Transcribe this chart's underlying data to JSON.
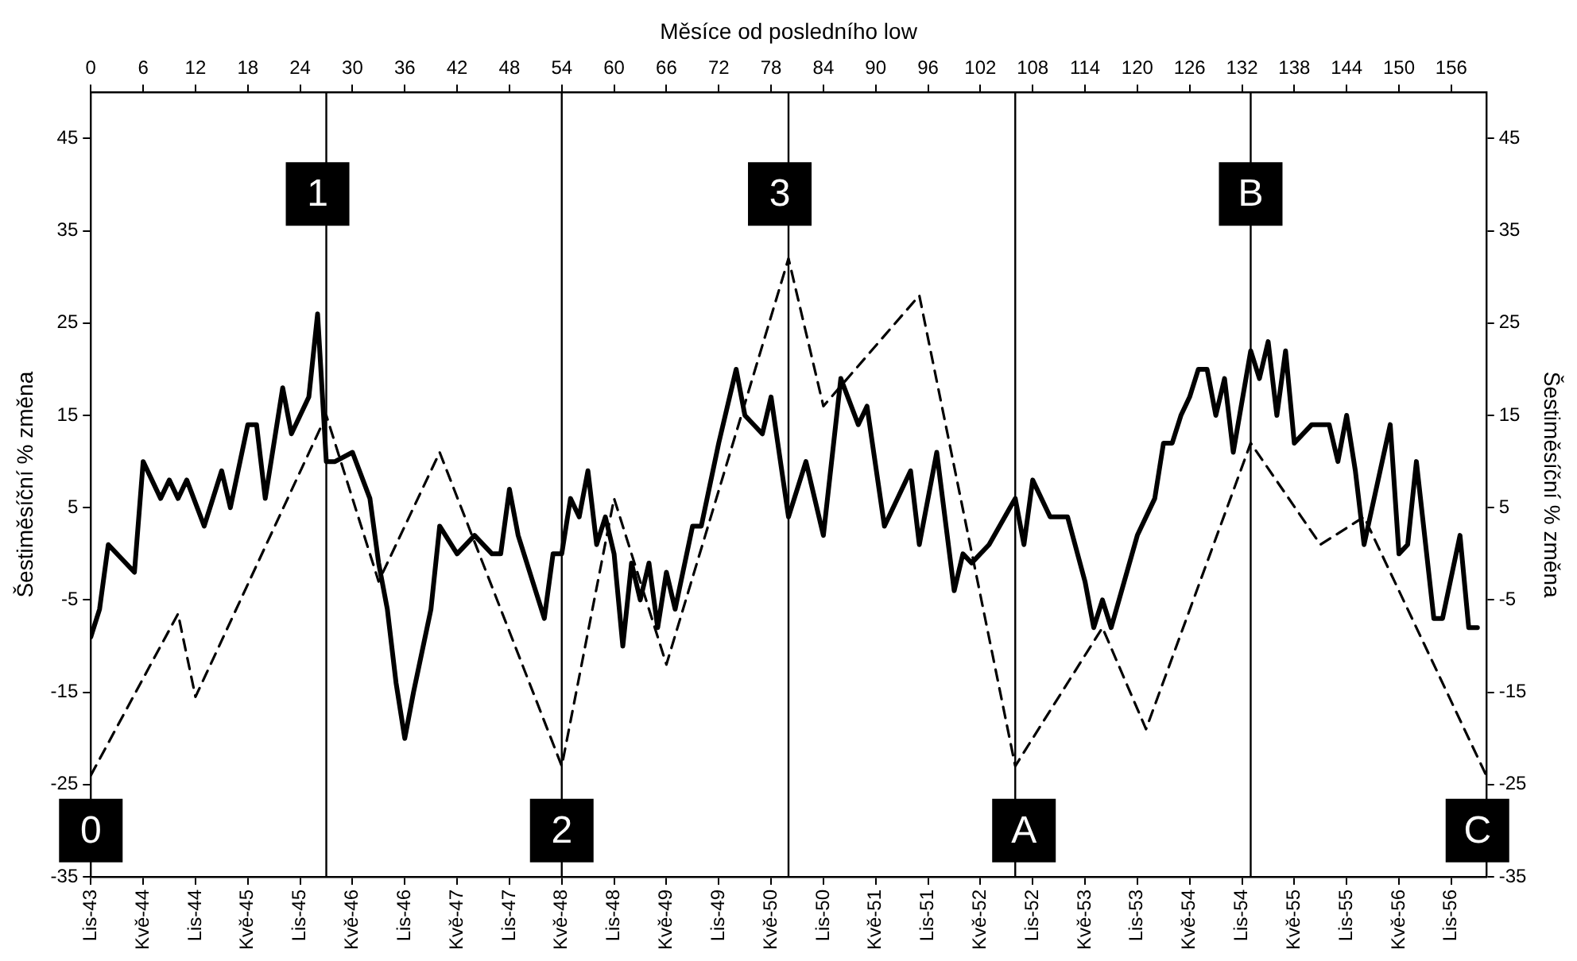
{
  "chart_data": {
    "type": "line",
    "x2label": "Měsíce od posledního low",
    "ylabel": "Šestiměsíční % změna",
    "y2label": "Šestiměsíční % změna",
    "xlim": [
      "1943-11",
      "1957-03"
    ],
    "xticks": [
      {
        "value": "1943-11",
        "label": "Lis-43"
      },
      {
        "value": "1944-05",
        "label": "Kvě-44"
      },
      {
        "value": "1944-11",
        "label": "Lis-44"
      },
      {
        "value": "1945-05",
        "label": "Kvě-45"
      },
      {
        "value": "1945-11",
        "label": "Lis-45"
      },
      {
        "value": "1946-05",
        "label": "Kvě-46"
      },
      {
        "value": "1946-11",
        "label": "Lis-46"
      },
      {
        "value": "1947-05",
        "label": "Kvě-47"
      },
      {
        "value": "1947-11",
        "label": "Lis-47"
      },
      {
        "value": "1948-05",
        "label": "Kvě-48"
      },
      {
        "value": "1948-11",
        "label": "Lis-48"
      },
      {
        "value": "1949-05",
        "label": "Kvě-49"
      },
      {
        "value": "1949-11",
        "label": "Lis-49"
      },
      {
        "value": "1950-05",
        "label": "Kvě-50"
      },
      {
        "value": "1950-11",
        "label": "Lis-50"
      },
      {
        "value": "1951-05",
        "label": "Kvě-51"
      },
      {
        "value": "1951-11",
        "label": "Lis-51"
      },
      {
        "value": "1952-05",
        "label": "Kvě-52"
      },
      {
        "value": "1952-11",
        "label": "Lis-52"
      },
      {
        "value": "1953-05",
        "label": "Kvě-53"
      },
      {
        "value": "1953-11",
        "label": "Lis-53"
      },
      {
        "value": "1954-05",
        "label": "Kvě-54"
      },
      {
        "value": "1954-11",
        "label": "Lis-54"
      },
      {
        "value": "1955-05",
        "label": "Kvě-55"
      },
      {
        "value": "1955-11",
        "label": "Lis-55"
      },
      {
        "value": "1956-05",
        "label": "Kvě-56"
      },
      {
        "value": "1956-11",
        "label": "Lis-56"
      }
    ],
    "x2lim": [
      0,
      160
    ],
    "x2ticks": [
      0,
      6,
      12,
      18,
      24,
      30,
      36,
      42,
      48,
      54,
      60,
      66,
      72,
      78,
      84,
      90,
      96,
      102,
      108,
      114,
      120,
      126,
      132,
      138,
      144,
      150,
      156
    ],
    "ylim": [
      -35,
      50
    ],
    "yticks": [
      -35,
      -25,
      -15,
      -5,
      5,
      15,
      25,
      35,
      45
    ],
    "y2lim": [
      -35,
      50
    ],
    "y2ticks": [
      -35,
      -25,
      -15,
      -5,
      5,
      15,
      25,
      35,
      45
    ],
    "series": [
      {
        "color": "#000000",
        "line_style": "solid",
        "x": [
          "1943-11",
          "1943-12",
          "1944-01",
          "1944-04",
          "1944-05",
          "1944-07",
          "1944-08",
          "1944-09",
          "1944-10",
          "1944-12",
          "1945-02",
          "1945-03",
          "1945-05",
          "1945-06",
          "1945-07",
          "1945-09",
          "1945-10",
          "1945-12",
          "1946-01",
          "1946-02",
          "1946-03",
          "1946-05",
          "1946-07",
          "1946-08",
          "1946-09",
          "1946-10",
          "1946-11",
          "1946-12",
          "1947-02",
          "1947-03",
          "1947-05",
          "1947-07",
          "1947-09",
          "1947-10",
          "1947-11",
          "1947-12",
          "1948-02",
          "1948-03",
          "1948-04",
          "1948-05",
          "1948-06",
          "1948-07",
          "1948-08",
          "1948-09",
          "1948-10",
          "1948-11",
          "1948-12",
          "1949-01",
          "1949-02",
          "1949-03",
          "1949-04",
          "1949-05",
          "1949-06",
          "1949-08",
          "1949-09",
          "1949-11",
          "1950-01",
          "1950-02",
          "1950-04",
          "1950-05",
          "1950-07",
          "1950-09",
          "1950-11",
          "1951-01",
          "1951-03",
          "1951-04",
          "1951-06",
          "1951-09",
          "1951-10",
          "1951-12",
          "1952-02",
          "1952-03",
          "1952-04",
          "1952-06",
          "1952-09",
          "1952-10",
          "1952-11",
          "1953-01",
          "1953-03",
          "1953-05",
          "1953-06",
          "1953-07",
          "1953-08",
          "1953-11",
          "1954-01",
          "1954-02",
          "1954-03",
          "1954-04",
          "1954-05",
          "1954-06",
          "1954-07",
          "1954-08",
          "1954-09",
          "1954-10",
          "1954-12",
          "1955-01",
          "1955-02",
          "1955-03",
          "1955-04",
          "1955-05",
          "1955-07",
          "1955-09",
          "1955-10",
          "1955-11",
          "1955-12",
          "1956-01",
          "1956-04",
          "1956-05",
          "1956-06",
          "1956-07",
          "1956-09",
          "1956-10",
          "1956-12",
          "1957-01",
          "1957-02"
        ],
        "values": [
          -9,
          -6,
          1,
          -2,
          10,
          6,
          8,
          6,
          8,
          3,
          9,
          5,
          14,
          14,
          6,
          18,
          13,
          17,
          26,
          10,
          10,
          11,
          6,
          -1,
          -6,
          -14,
          -20,
          -15,
          -6,
          3,
          0,
          2,
          0,
          0,
          7,
          2,
          -4,
          -7,
          0,
          0,
          6,
          4,
          9,
          1,
          4,
          0,
          -10,
          -1,
          -5,
          -1,
          -8,
          -2,
          -6,
          3,
          3,
          12,
          20,
          15,
          13,
          17,
          4,
          10,
          2,
          19,
          14,
          16,
          3,
          9,
          1,
          11,
          -4,
          0,
          -1,
          1,
          6,
          1,
          8,
          4,
          4,
          -3,
          -8,
          -5,
          -8,
          2,
          6,
          12,
          12,
          15,
          17,
          20,
          20,
          15,
          19,
          11,
          22,
          19,
          23,
          15,
          22,
          12,
          14,
          14,
          10,
          15,
          9,
          1,
          14,
          0,
          1,
          10,
          -7,
          -7,
          2,
          -8,
          -8
        ]
      },
      {
        "color": "#000000",
        "line_style": "dashed",
        "x": [
          "1943-11",
          "1944-09",
          "1944-11",
          "1946-02",
          "1946-08",
          "1947-03",
          "1948-05",
          "1948-11",
          "1949-05",
          "1950-07",
          "1950-11",
          "1951-10",
          "1952-09",
          "1953-07",
          "1953-12",
          "1954-12",
          "1955-08",
          "1956-01",
          "1957-03"
        ],
        "values": [
          -24,
          -6.5,
          -15.5,
          15,
          -3,
          11,
          -23,
          6,
          -12,
          32,
          16,
          28,
          -23,
          -8,
          -19,
          12,
          1,
          4,
          -24
        ]
      }
    ],
    "ref_lines": [
      {
        "axis": "x",
        "value": "1946-02",
        "color": "#000000"
      },
      {
        "axis": "x",
        "value": "1948-05",
        "color": "#000000"
      },
      {
        "axis": "x",
        "value": "1950-07",
        "color": "#000000"
      },
      {
        "axis": "x",
        "value": "1952-09",
        "color": "#000000"
      },
      {
        "axis": "x",
        "value": "1954-12",
        "color": "#000000"
      }
    ],
    "annotations": [
      {
        "text": "0",
        "x": "1943-11",
        "y": -30
      },
      {
        "text": "1",
        "x": "1946-01",
        "y": 39
      },
      {
        "text": "2",
        "x": "1948-05",
        "y": -30
      },
      {
        "text": "3",
        "x": "1950-06",
        "y": 39
      },
      {
        "text": "A",
        "x": "1952-10",
        "y": -30
      },
      {
        "text": "B",
        "x": "1954-12",
        "y": 39
      },
      {
        "text": "C",
        "x": "1957-02",
        "y": -30
      }
    ]
  }
}
